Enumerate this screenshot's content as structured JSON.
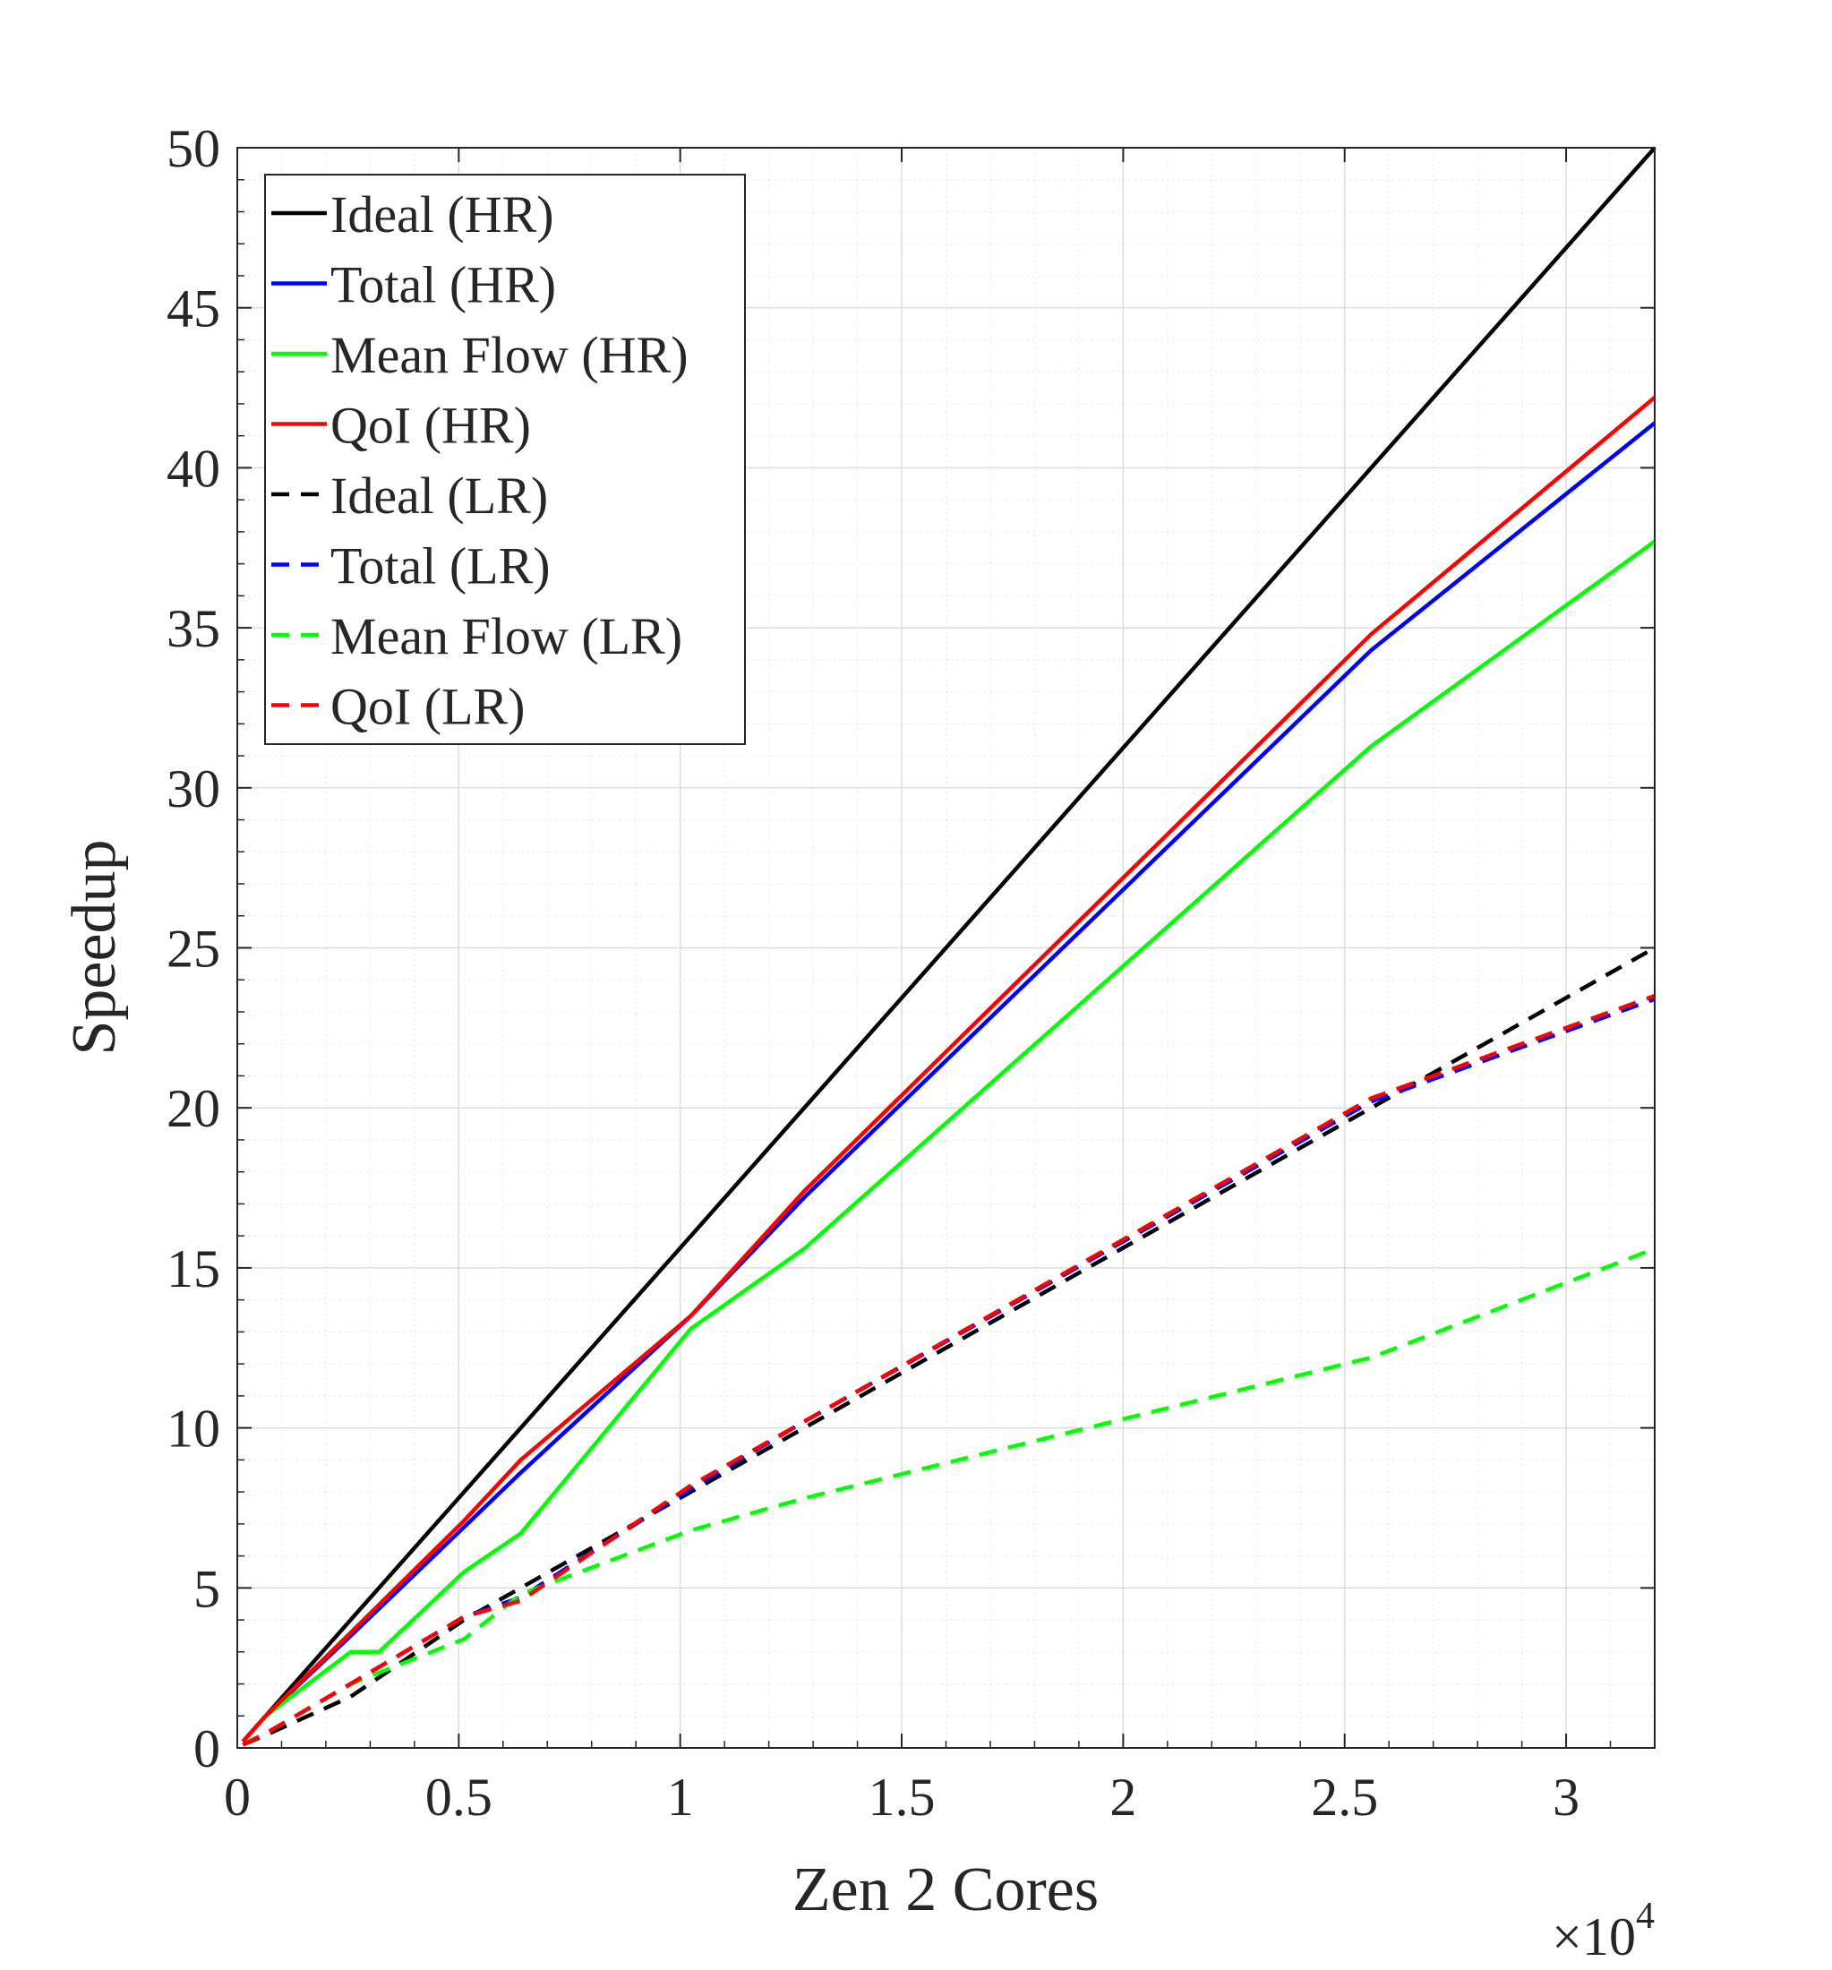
{
  "chart_data": {
    "type": "line",
    "title": "",
    "xlabel": "Zen 2 Cores",
    "ylabel": "Speedup",
    "x_exponent_label": "×10",
    "x_exponent_power": "4",
    "xlim": [
      0,
      32000
    ],
    "ylim": [
      0,
      50
    ],
    "x_ticks": [
      {
        "value": 0,
        "label": "0"
      },
      {
        "value": 5000,
        "label": "0.5"
      },
      {
        "value": 10000,
        "label": "1"
      },
      {
        "value": 15000,
        "label": "1.5"
      },
      {
        "value": 20000,
        "label": "2"
      },
      {
        "value": 25000,
        "label": "2.5"
      },
      {
        "value": 30000,
        "label": "3"
      }
    ],
    "y_ticks": [
      {
        "value": 0,
        "label": "0"
      },
      {
        "value": 5,
        "label": "5"
      },
      {
        "value": 10,
        "label": "10"
      },
      {
        "value": 15,
        "label": "15"
      },
      {
        "value": 20,
        "label": "20"
      },
      {
        "value": 25,
        "label": "25"
      },
      {
        "value": 30,
        "label": "30"
      },
      {
        "value": 35,
        "label": "35"
      },
      {
        "value": 40,
        "label": "40"
      },
      {
        "value": 45,
        "label": "45"
      },
      {
        "value": 50,
        "label": "50"
      }
    ],
    "grid": true,
    "minor_grid": true,
    "legend_position": "top-left",
    "series": [
      {
        "name": "Ideal (HR)",
        "color": "#000000",
        "dash": "solid",
        "x": [
          128,
          640,
          2560,
          5120,
          6400,
          10240,
          12800,
          25600,
          32000
        ],
        "y": [
          0.2,
          1.0,
          4.0,
          8.0,
          10.0,
          16.0,
          20.0,
          40.0,
          50.0
        ]
      },
      {
        "name": "Total (HR)",
        "color": "#0000ff",
        "dash": "solid",
        "x": [
          128,
          640,
          2560,
          5120,
          6400,
          10240,
          12800,
          25600,
          32000
        ],
        "y": [
          0.2,
          1.0,
          3.5,
          6.9,
          8.6,
          13.5,
          17.2,
          34.3,
          41.4
        ]
      },
      {
        "name": "Mean Flow (HR)",
        "color": "#00ff00",
        "dash": "solid",
        "x": [
          128,
          640,
          2560,
          3200,
          5120,
          6400,
          10240,
          12800,
          25600,
          32000
        ],
        "y": [
          0.2,
          1.0,
          3.0,
          3.0,
          5.5,
          6.7,
          13.1,
          15.6,
          31.3,
          37.7
        ]
      },
      {
        "name": "QoI (HR)",
        "color": "#ff0000",
        "dash": "solid",
        "x": [
          128,
          640,
          2560,
          5120,
          6400,
          10240,
          12800,
          25600,
          32000
        ],
        "y": [
          0.2,
          1.0,
          3.6,
          7.1,
          9.0,
          13.5,
          17.4,
          34.8,
          42.2
        ]
      },
      {
        "name": "Ideal (LR)",
        "color": "#000000",
        "dash": "dashed",
        "x": [
          128,
          640,
          2560,
          5120,
          6400,
          10240,
          12800,
          25600,
          32000
        ],
        "y": [
          0.1,
          0.4,
          1.6,
          4.0,
          5.0,
          8.0,
          10.0,
          20.0,
          25.0
        ]
      },
      {
        "name": "Total (LR)",
        "color": "#0000ff",
        "dash": "dashed",
        "x": [
          128,
          640,
          2560,
          5120,
          6400,
          10240,
          12800,
          25600,
          32000
        ],
        "y": [
          0.1,
          0.45,
          2.0,
          4.1,
          4.7,
          8.1,
          10.2,
          20.2,
          23.4
        ]
      },
      {
        "name": "Mean Flow (LR)",
        "color": "#00ff00",
        "dash": "dashed",
        "x": [
          128,
          640,
          2560,
          5120,
          6400,
          10240,
          12800,
          25600,
          32000
        ],
        "y": [
          0.1,
          0.45,
          2.0,
          3.4,
          4.8,
          6.8,
          7.8,
          12.2,
          15.6
        ]
      },
      {
        "name": "QoI (LR)",
        "color": "#ff0000",
        "dash": "dashed",
        "x": [
          128,
          640,
          2560,
          5120,
          6400,
          10240,
          12800,
          25600,
          32000
        ],
        "y": [
          0.1,
          0.45,
          2.0,
          4.1,
          4.6,
          8.2,
          10.2,
          20.3,
          23.5
        ]
      }
    ]
  }
}
